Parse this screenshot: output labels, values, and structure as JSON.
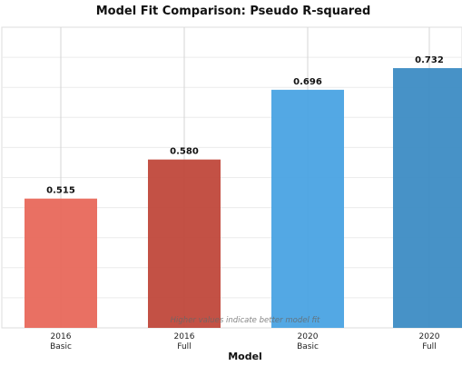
{
  "chart_data": {
    "type": "bar",
    "title": "Model Fit Comparison: Pseudo R-squared",
    "xlabel": "Model",
    "ylabel": "",
    "categories": [
      [
        "2016",
        "Basic"
      ],
      [
        "2016",
        "Full"
      ],
      [
        "2020",
        "Basic"
      ],
      [
        "2020",
        "Full"
      ]
    ],
    "values": [
      0.515,
      0.58,
      0.696,
      0.732
    ],
    "value_labels": [
      "0.515",
      "0.580",
      "0.696",
      "0.732"
    ],
    "bar_colors": [
      "#e8685b",
      "#c0483b",
      "#4aa3e3",
      "#3d8cc4"
    ],
    "ylim": [
      0.3,
      0.8
    ],
    "grid": true,
    "annotation": "Higher values indicate better model fit"
  }
}
